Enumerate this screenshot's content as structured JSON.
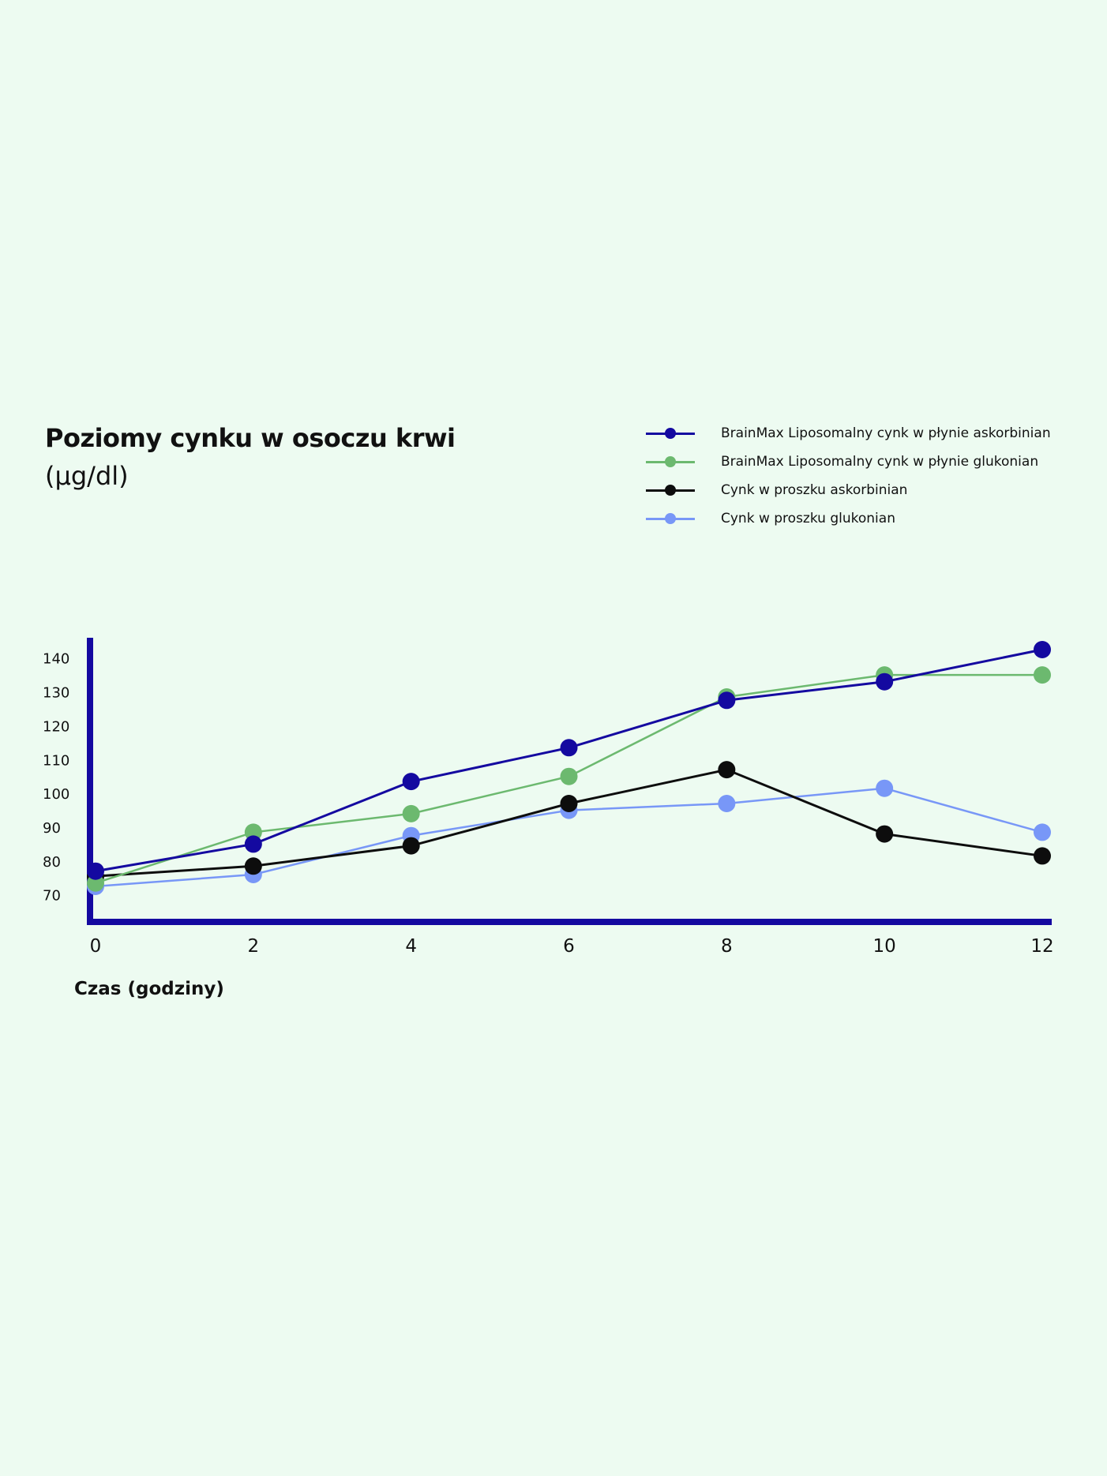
{
  "chart_data": {
    "type": "line",
    "title": "Poziomy cynku w osoczu krwi",
    "subtitle": "(µg/dl)",
    "xlabel": "Czas (godziny)",
    "ylabel": "",
    "x": [
      0,
      2,
      4,
      6,
      8,
      10,
      12
    ],
    "x_ticks": [
      "0",
      "2",
      "4",
      "6",
      "8",
      "10",
      "12"
    ],
    "y_ticks": [
      "70",
      "80",
      "90",
      "100",
      "110",
      "120",
      "130",
      "140"
    ],
    "ylim": [
      62,
      146
    ],
    "xlim": [
      0,
      12
    ],
    "grid": false,
    "legend_position": "top-right",
    "series": [
      {
        "name": "BrainMax Liposomalny cynk w płynie askorbinian",
        "color": "#1409a0",
        "values": [
          77,
          85,
          103.5,
          113.5,
          127.5,
          133,
          142.5
        ]
      },
      {
        "name": "BrainMax Liposomalny cynk w płynie glukonian",
        "color": "#6cb96f",
        "values": [
          73.5,
          88.5,
          94,
          105,
          128.5,
          135,
          135
        ]
      },
      {
        "name": "Cynk w proszku askorbinian",
        "color": "#0d0d0d",
        "values": [
          75.5,
          78.5,
          84.5,
          97,
          107,
          88,
          81.5
        ]
      },
      {
        "name": "Cynk w proszku glukonian",
        "color": "#7897f7",
        "values": [
          72.5,
          76,
          87.5,
          95,
          97,
          101.5,
          88.5
        ]
      }
    ]
  }
}
